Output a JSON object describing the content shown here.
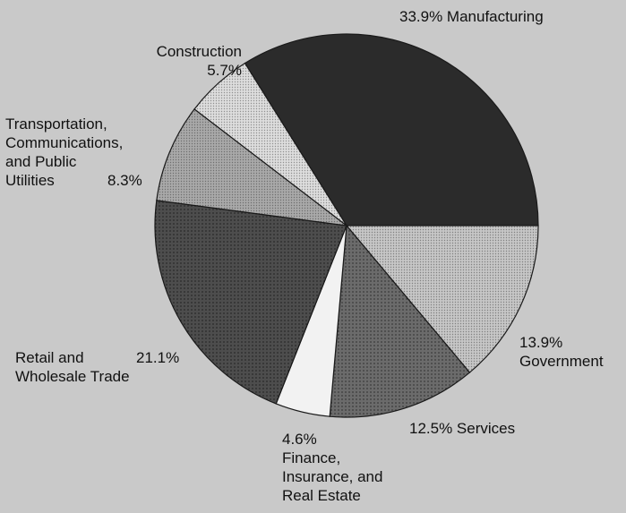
{
  "chart_data": {
    "type": "pie",
    "slices": [
      {
        "category": "Manufacturing",
        "value": 33.9,
        "color": "#2b2b2b",
        "texture": "solid"
      },
      {
        "category": "Government",
        "value": 13.9,
        "color": "#c6c6c6",
        "texture": "fine-dots"
      },
      {
        "category": "Services",
        "value": 12.5,
        "color": "#6b6b6b",
        "texture": "medium-dots"
      },
      {
        "category": "Finance, Insurance, and Real Estate",
        "value": 4.6,
        "color": "#f2f2f2",
        "texture": "solid"
      },
      {
        "category": "Retail and Wholesale Trade",
        "value": 21.1,
        "color": "#4d4d4d",
        "texture": "medium-dots"
      },
      {
        "category": "Transportation, Communications, and Public Utilities",
        "value": 8.3,
        "color": "#a9a9a9",
        "texture": "fine-dots"
      },
      {
        "category": "Construction",
        "value": 5.7,
        "color": "#dddddd",
        "texture": "fine-dots"
      }
    ],
    "start_angle": "3 o'clock",
    "direction": "counter-clockwise",
    "legend": "none",
    "labels": {
      "manufacturing": [
        "33.9% Manufacturing"
      ],
      "government": [
        "13.9%",
        "Government"
      ],
      "services": [
        "12.5% Services"
      ],
      "finance": [
        "4.6%",
        "Finance,",
        "Insurance, and",
        "Real Estate"
      ],
      "retail": [
        "Retail and",
        "Wholesale Trade"
      ],
      "retail_pct": "21.1%",
      "transportation": [
        "Transportation,",
        "Communications,",
        "and Public",
        "Utilities"
      ],
      "transportation_pct": "8.3%",
      "construction": [
        "Construction",
        "5.7%"
      ]
    }
  }
}
